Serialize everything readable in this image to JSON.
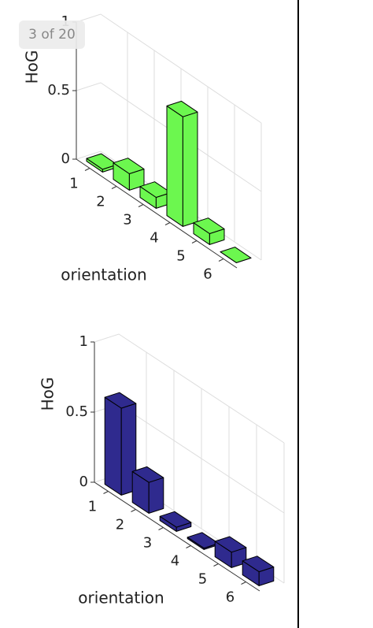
{
  "viewer": {
    "page_indicator": "3 of 20"
  },
  "chart_data": [
    {
      "type": "bar3",
      "color": "#6cf74f",
      "y_label": "HoG",
      "x_label": "orientation",
      "categories": [
        "1",
        "2",
        "3",
        "4",
        "5",
        "6"
      ],
      "values": [
        0.02,
        0.12,
        0.08,
        0.8,
        0.08,
        0.0
      ],
      "ylim": [
        0,
        1
      ],
      "yticks": [
        0,
        0.5,
        1
      ],
      "grid": true
    },
    {
      "type": "bar3",
      "color": "#2f2a8e",
      "y_label": "HoG",
      "x_label": "orientation",
      "categories": [
        "1",
        "2",
        "3",
        "4",
        "5",
        "6"
      ],
      "values": [
        0.62,
        0.22,
        0.03,
        0.01,
        0.11,
        0.1
      ],
      "ylim": [
        0,
        1
      ],
      "yticks": [
        0,
        0.5,
        1
      ],
      "grid": true
    }
  ]
}
